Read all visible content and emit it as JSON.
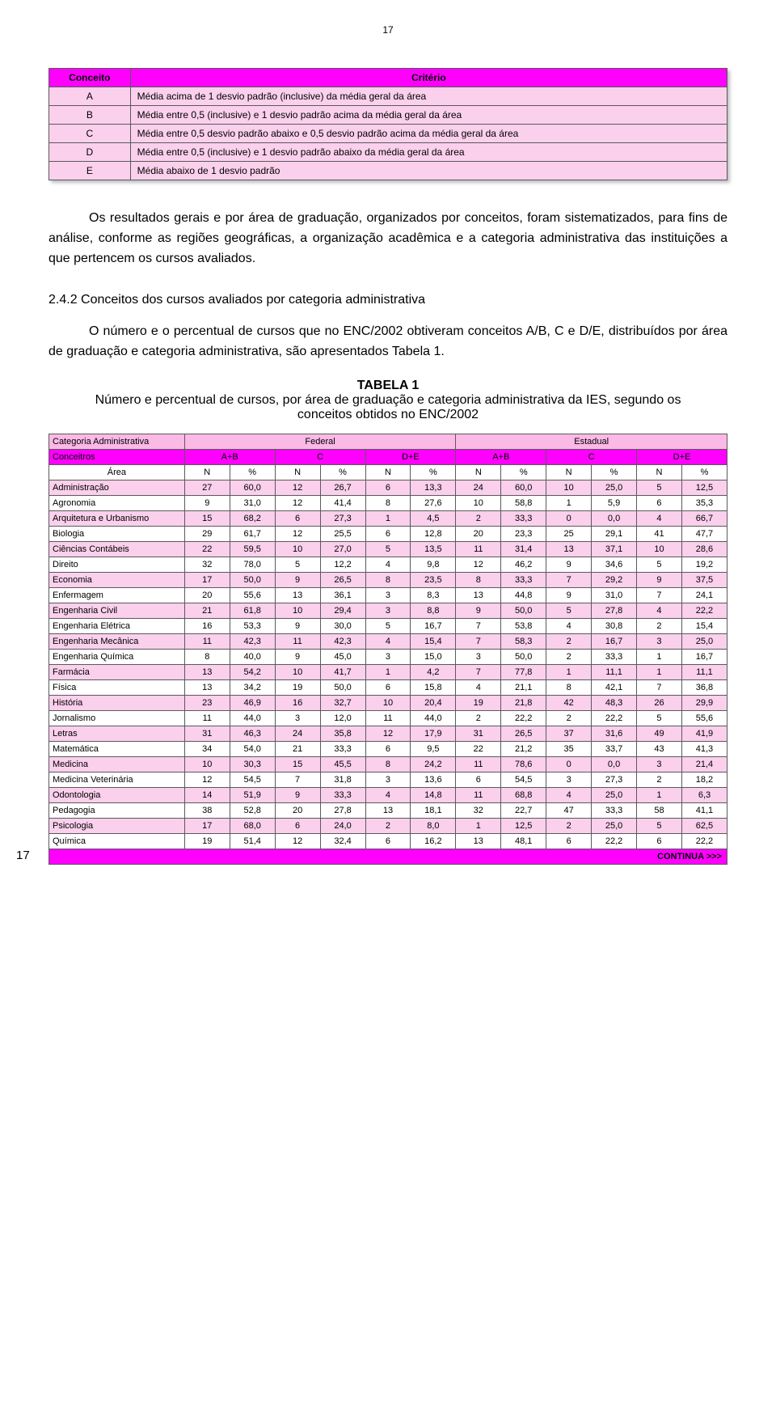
{
  "page_top_number": "17",
  "page_bottom_number": "17",
  "colors": {
    "header_magenta": "#ff00ff",
    "row_pink": "#fad0ec",
    "light_pink": "#fbb9e6",
    "border": "#5a5a5a",
    "bg": "#ffffff"
  },
  "table1": {
    "headers": [
      "Conceito",
      "Critério"
    ],
    "rows": [
      [
        "A",
        "Média acima de 1 desvio padrão (inclusive) da média geral da área"
      ],
      [
        "B",
        "Média entre 0,5 (inclusive) e 1 desvio padrão acima da média geral da área"
      ],
      [
        "C",
        "Média entre 0,5 desvio padrão abaixo e 0,5 desvio padrão acima da média geral da área"
      ],
      [
        "D",
        "Média entre 0,5 (inclusive) e 1 desvio padrão abaixo da média geral da área"
      ],
      [
        "E",
        "Média abaixo de 1 desvio padrão"
      ]
    ],
    "col_widths_pct": [
      12,
      88
    ]
  },
  "para1": "Os resultados gerais e por área de graduação, organizados por conceitos, foram sistematizados, para fins de análise, conforme as regiões geográficas, a organização acadêmica e a categoria administrativa das instituições a que pertencem os cursos avaliados.",
  "section_heading": "2.4.2 Conceitos dos cursos avaliados por categoria administrativa",
  "para2": "O número e o percentual de cursos que no ENC/2002 obtiveram conceitos A/B, C e D/E, distribuídos por área de graduação e categoria administrativa, são apresentados Tabela 1.",
  "table_caption": {
    "line1": "TABELA 1",
    "line2": "Número e percentual de cursos, por área de graduação e categoria administrativa da IES, segundo os conceitos obtidos no ENC/2002"
  },
  "table2": {
    "cat_admin_label": "Categoria Administrativa",
    "conceitros_label": "Conceitros",
    "area_label": "Área",
    "groups": [
      "Federal",
      "Estadual"
    ],
    "subgroups": [
      "A+B",
      "C",
      "D+E"
    ],
    "metrics": [
      "N",
      "%"
    ],
    "footer": "CONTINUA >>>",
    "rows": [
      {
        "area": "Administração",
        "v": [
          27,
          "60,0",
          12,
          "26,7",
          6,
          "13,3",
          24,
          "60,0",
          10,
          "25,0",
          5,
          "12,5"
        ]
      },
      {
        "area": "Agronomia",
        "v": [
          9,
          "31,0",
          12,
          "41,4",
          8,
          "27,6",
          10,
          "58,8",
          1,
          "5,9",
          6,
          "35,3"
        ]
      },
      {
        "area": "Arquitetura e Urbanismo",
        "v": [
          15,
          "68,2",
          6,
          "27,3",
          1,
          "4,5",
          2,
          "33,3",
          0,
          "0,0",
          4,
          "66,7"
        ]
      },
      {
        "area": "Biologia",
        "v": [
          29,
          "61,7",
          12,
          "25,5",
          6,
          "12,8",
          20,
          "23,3",
          25,
          "29,1",
          41,
          "47,7"
        ]
      },
      {
        "area": "Ciências Contábeis",
        "v": [
          22,
          "59,5",
          10,
          "27,0",
          5,
          "13,5",
          11,
          "31,4",
          13,
          "37,1",
          10,
          "28,6"
        ]
      },
      {
        "area": "Direito",
        "v": [
          32,
          "78,0",
          5,
          "12,2",
          4,
          "9,8",
          12,
          "46,2",
          9,
          "34,6",
          5,
          "19,2"
        ]
      },
      {
        "area": "Economia",
        "v": [
          17,
          "50,0",
          9,
          "26,5",
          8,
          "23,5",
          8,
          "33,3",
          7,
          "29,2",
          9,
          "37,5"
        ]
      },
      {
        "area": "Enfermagem",
        "v": [
          20,
          "55,6",
          13,
          "36,1",
          3,
          "8,3",
          13,
          "44,8",
          9,
          "31,0",
          7,
          "24,1"
        ]
      },
      {
        "area": "Engenharia Civil",
        "v": [
          21,
          "61,8",
          10,
          "29,4",
          3,
          "8,8",
          9,
          "50,0",
          5,
          "27,8",
          4,
          "22,2"
        ]
      },
      {
        "area": "Engenharia Elétrica",
        "v": [
          16,
          "53,3",
          9,
          "30,0",
          5,
          "16,7",
          7,
          "53,8",
          4,
          "30,8",
          2,
          "15,4"
        ]
      },
      {
        "area": "Engenharia Mecânica",
        "v": [
          11,
          "42,3",
          11,
          "42,3",
          4,
          "15,4",
          7,
          "58,3",
          2,
          "16,7",
          3,
          "25,0"
        ]
      },
      {
        "area": "Engenharia Química",
        "v": [
          8,
          "40,0",
          9,
          "45,0",
          3,
          "15,0",
          3,
          "50,0",
          2,
          "33,3",
          1,
          "16,7"
        ]
      },
      {
        "area": "Farmácia",
        "v": [
          13,
          "54,2",
          10,
          "41,7",
          1,
          "4,2",
          7,
          "77,8",
          1,
          "11,1",
          1,
          "11,1"
        ]
      },
      {
        "area": "Física",
        "v": [
          13,
          "34,2",
          19,
          "50,0",
          6,
          "15,8",
          4,
          "21,1",
          8,
          "42,1",
          7,
          "36,8"
        ]
      },
      {
        "area": "História",
        "v": [
          23,
          "46,9",
          16,
          "32,7",
          10,
          "20,4",
          19,
          "21,8",
          42,
          "48,3",
          26,
          "29,9"
        ]
      },
      {
        "area": "Jornalismo",
        "v": [
          11,
          "44,0",
          3,
          "12,0",
          11,
          "44,0",
          2,
          "22,2",
          2,
          "22,2",
          5,
          "55,6"
        ]
      },
      {
        "area": "Letras",
        "v": [
          31,
          "46,3",
          24,
          "35,8",
          12,
          "17,9",
          31,
          "26,5",
          37,
          "31,6",
          49,
          "41,9"
        ]
      },
      {
        "area": "Matemática",
        "v": [
          34,
          "54,0",
          21,
          "33,3",
          6,
          "9,5",
          22,
          "21,2",
          35,
          "33,7",
          43,
          "41,3"
        ]
      },
      {
        "area": "Medicina",
        "v": [
          10,
          "30,3",
          15,
          "45,5",
          8,
          "24,2",
          11,
          "78,6",
          0,
          "0,0",
          3,
          "21,4"
        ]
      },
      {
        "area": "Medicina Veterinária",
        "v": [
          12,
          "54,5",
          7,
          "31,8",
          3,
          "13,6",
          6,
          "54,5",
          3,
          "27,3",
          2,
          "18,2"
        ]
      },
      {
        "area": "Odontologia",
        "v": [
          14,
          "51,9",
          9,
          "33,3",
          4,
          "14,8",
          11,
          "68,8",
          4,
          "25,0",
          1,
          "6,3"
        ]
      },
      {
        "area": "Pedagogia",
        "v": [
          38,
          "52,8",
          20,
          "27,8",
          13,
          "18,1",
          32,
          "22,7",
          47,
          "33,3",
          58,
          "41,1"
        ]
      },
      {
        "area": "Psicologia",
        "v": [
          17,
          "68,0",
          6,
          "24,0",
          2,
          "8,0",
          1,
          "12,5",
          2,
          "25,0",
          5,
          "62,5"
        ]
      },
      {
        "area": "Química",
        "v": [
          19,
          "51,4",
          12,
          "32,4",
          6,
          "16,2",
          13,
          "48,1",
          6,
          "22,2",
          6,
          "22,2"
        ]
      }
    ]
  }
}
